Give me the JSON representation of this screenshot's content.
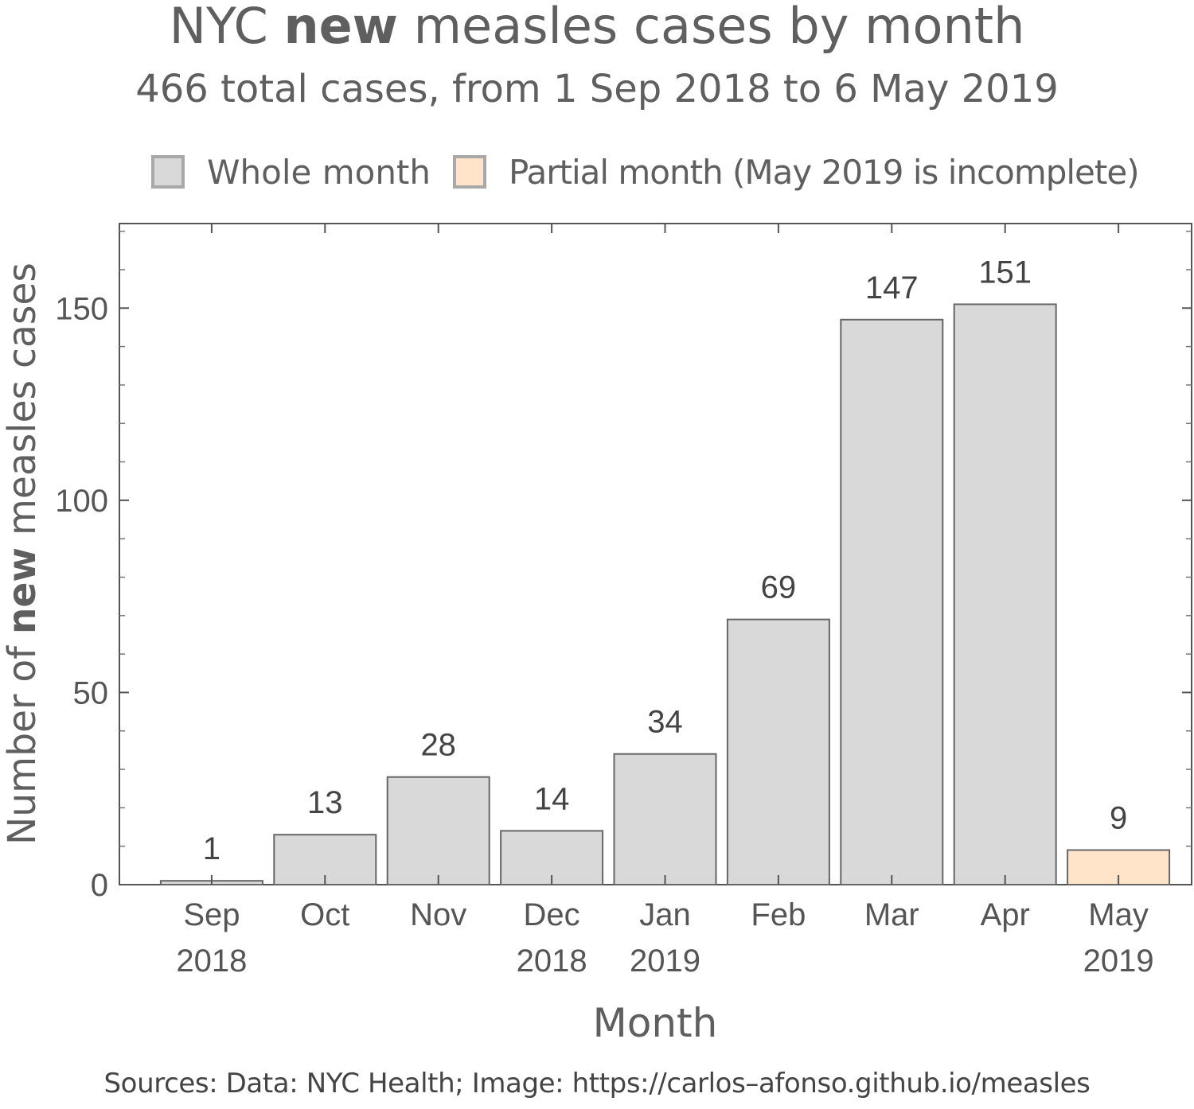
{
  "title": {
    "prefix": "NYC",
    "bold": "new",
    "suffix": "measles cases by month"
  },
  "subtitle": "466 total cases, from 1 Sep 2018 to 6 May 2019",
  "legend": [
    {
      "label": "Whole month",
      "color": "#d9d9d9"
    },
    {
      "label": "Partial month (May 2019 is incomplete)",
      "color": "#ffe4c9"
    }
  ],
  "footer": "Sources:  Data: NYC Health;  Image: https://carlos–afonso.github.io/measles",
  "chart_data": {
    "type": "bar",
    "title": "NYC new measles cases by month",
    "subtitle": "466 total cases, from 1 Sep 2018 to 6 May 2019",
    "xlabel": "Month",
    "ylabel": {
      "prefix": "Number of",
      "bold": "new",
      "suffix": "measles cases"
    },
    "categories": [
      {
        "line1": "Sep",
        "line2": "2018"
      },
      {
        "line1": "Oct",
        "line2": ""
      },
      {
        "line1": "Nov",
        "line2": ""
      },
      {
        "line1": "Dec",
        "line2": "2018"
      },
      {
        "line1": "Jan",
        "line2": "2019"
      },
      {
        "line1": "Feb",
        "line2": ""
      },
      {
        "line1": "Mar",
        "line2": ""
      },
      {
        "line1": "Apr",
        "line2": ""
      },
      {
        "line1": "May",
        "line2": "2019"
      }
    ],
    "values": [
      1,
      13,
      28,
      14,
      34,
      69,
      147,
      151,
      9
    ],
    "partial": [
      false,
      false,
      false,
      false,
      false,
      false,
      false,
      false,
      true
    ],
    "ylim": [
      0,
      172
    ],
    "yticks": [
      0,
      50,
      100,
      150
    ],
    "grid": false,
    "legend_placement": "top",
    "colors": {
      "whole": "#d9d9d9",
      "partial": "#ffe4c9",
      "bar_edge": "#666666"
    }
  }
}
